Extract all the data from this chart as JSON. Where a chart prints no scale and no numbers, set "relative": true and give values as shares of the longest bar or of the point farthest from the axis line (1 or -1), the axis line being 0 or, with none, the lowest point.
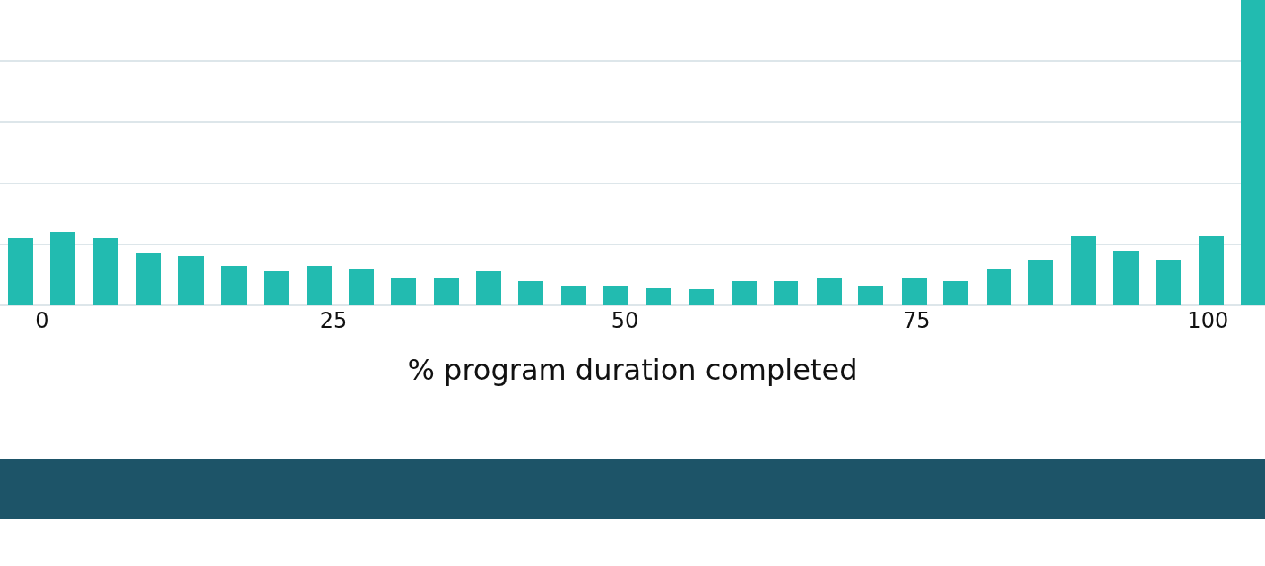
{
  "chart_data": {
    "type": "bar",
    "xlabel": "% program duration completed",
    "relative": true,
    "color": "#22bbb0",
    "grid": "y",
    "xlim": [
      -3.6,
      104.9
    ],
    "xticks": [
      0,
      25,
      50,
      75,
      100
    ],
    "x": [
      -1.8,
      1.8,
      5.5,
      9.2,
      12.8,
      16.5,
      20.1,
      23.8,
      27.4,
      31.0,
      34.7,
      38.3,
      41.9,
      45.6,
      49.2,
      52.9,
      56.5,
      60.2,
      63.8,
      67.5,
      71.1,
      74.8,
      78.4,
      82.1,
      85.7,
      89.4,
      93.0,
      96.6,
      100.3,
      103.9
    ],
    "values": [
      0.22,
      0.24,
      0.22,
      0.17,
      0.16,
      0.13,
      0.11,
      0.13,
      0.12,
      0.09,
      0.09,
      0.11,
      0.08,
      0.065,
      0.065,
      0.056,
      0.053,
      0.08,
      0.08,
      0.09,
      0.065,
      0.09,
      0.08,
      0.12,
      0.15,
      0.23,
      0.18,
      0.15,
      0.23,
      1
    ]
  }
}
